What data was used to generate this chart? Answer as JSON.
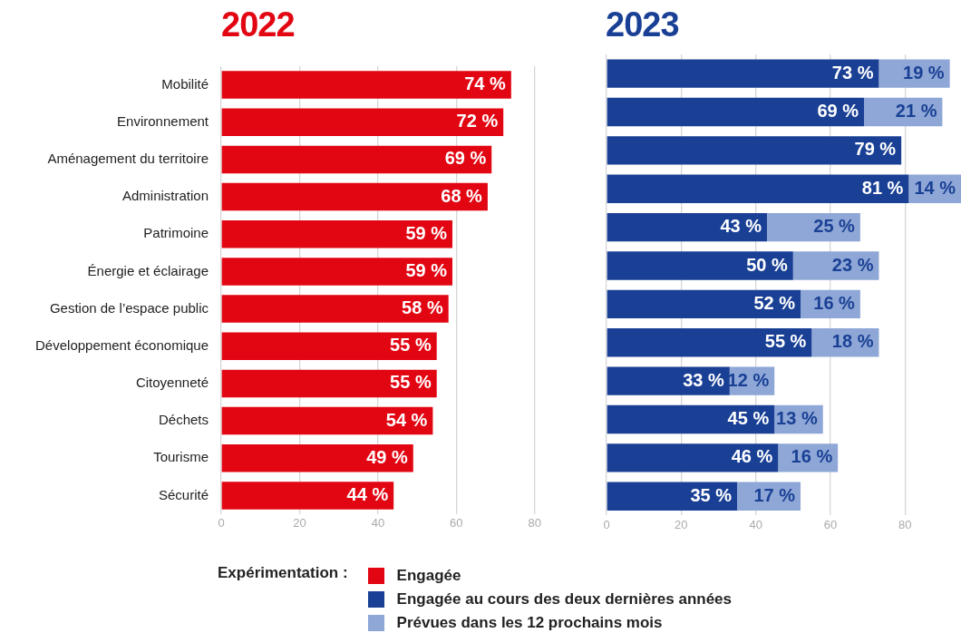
{
  "chart_data": [
    {
      "type": "bar",
      "orientation": "horizontal",
      "title": "2022",
      "legend_title": "Expérimentation :",
      "legend": "bottom",
      "grid": "x",
      "categories": [
        "Mobilité",
        "Environnement",
        "Aménagement du territoire",
        "Administration",
        "Patrimoine",
        "Énergie et éclairage",
        "Gestion de l’espace public",
        "Développement économique",
        "Citoyenneté",
        "Déchets",
        "Tourisme",
        "Sécurité"
      ],
      "series": [
        {
          "name": "Engagée",
          "color": "#e20613",
          "values": [
            74,
            72,
            69,
            68,
            59,
            59,
            58,
            55,
            55,
            54,
            49,
            44
          ],
          "value_labels": [
            "74 %",
            "72 %",
            "69 %",
            "68 %",
            "59 %",
            "59 %",
            "58 %",
            "55 %",
            "55 %",
            "54 %",
            "49 %",
            "44 %"
          ]
        }
      ],
      "xlim": [
        0,
        80
      ],
      "xticks": [
        0,
        20,
        40,
        60,
        80
      ]
    },
    {
      "type": "bar",
      "orientation": "horizontal",
      "stacked": true,
      "title": "2023",
      "legend": "bottom",
      "grid": "x",
      "tick_labels": "x",
      "categories": [
        null,
        null,
        null,
        null,
        null,
        null,
        null,
        null,
        null,
        null,
        null,
        null
      ],
      "series": [
        {
          "name": "Engagée au cours des deux dernières années",
          "color": "#1a4095",
          "values": [
            73,
            69,
            79,
            81,
            43,
            50,
            52,
            55,
            33,
            45,
            46,
            35
          ],
          "value_labels": [
            "73 %",
            "69 %",
            "79 %",
            "81 %",
            "43 %",
            "50 %",
            "52 %",
            "55 %",
            "33 %",
            "45 %",
            "46 %",
            "35 %"
          ]
        },
        {
          "name": "Prévues dans les 12 prochains mois",
          "color": "#8ea7d6",
          "values": [
            19,
            21,
            null,
            14,
            25,
            23,
            16,
            18,
            12,
            13,
            16,
            17
          ],
          "value_labels": [
            "19 %",
            "21 %",
            null,
            "14 %",
            "25 %",
            "23 %",
            "16 %",
            "18 %",
            "12 %",
            "13 %",
            "16 %",
            "17 %"
          ]
        }
      ],
      "xlim": [
        0,
        95
      ],
      "xticks": [
        0,
        20,
        40,
        60,
        80
      ]
    }
  ]
}
